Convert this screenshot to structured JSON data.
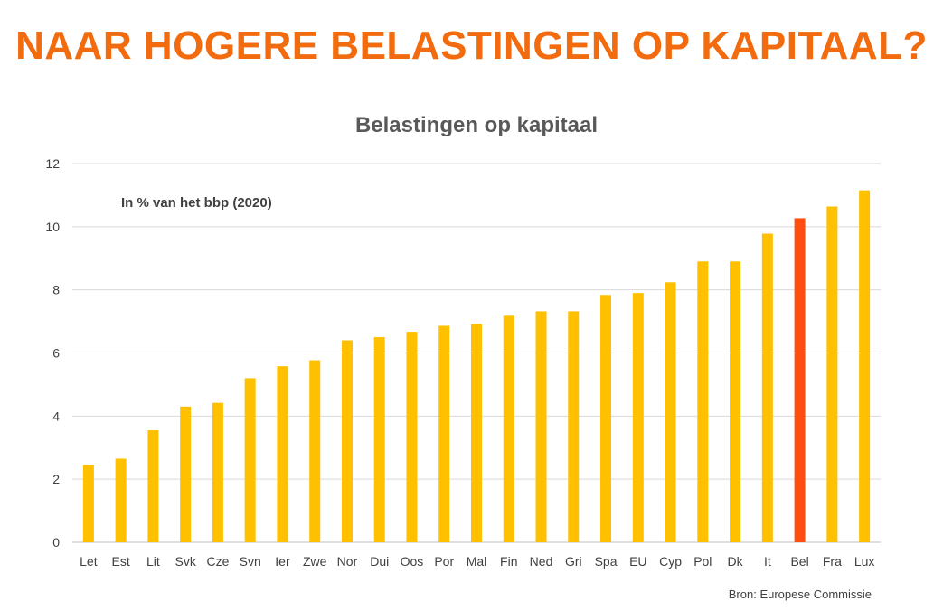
{
  "headline": "NAAR HOGERE BELASTINGEN OP KAPITAAL?",
  "chart_data": {
    "type": "bar",
    "title": "Belastingen op kapitaal",
    "subtitle": "In % van het bbp (2020)",
    "source": "Bron: Europese Commissie",
    "xlabel": "",
    "ylabel": "",
    "ylim": [
      0,
      12
    ],
    "yticks": [
      0,
      2,
      4,
      6,
      8,
      10,
      12
    ],
    "grid": true,
    "categories": [
      "Let",
      "Est",
      "Lit",
      "Svk",
      "Cze",
      "Svn",
      "Ier",
      "Zwe",
      "Nor",
      "Dui",
      "Oos",
      "Por",
      "Mal",
      "Fin",
      "Ned",
      "Gri",
      "Spa",
      "EU",
      "Cyp",
      "Pol",
      "Dk",
      "It",
      "Bel",
      "Fra",
      "Lux"
    ],
    "values": [
      2.45,
      2.65,
      3.55,
      4.3,
      4.42,
      5.2,
      5.58,
      5.77,
      6.4,
      6.5,
      6.67,
      6.86,
      6.92,
      7.18,
      7.32,
      7.32,
      7.84,
      7.9,
      8.24,
      8.9,
      8.9,
      9.78,
      10.27,
      10.64,
      11.15
    ],
    "highlight_category": "Bel",
    "colors": {
      "default": "#FFC000",
      "highlight": "#FF4E0F"
    }
  }
}
